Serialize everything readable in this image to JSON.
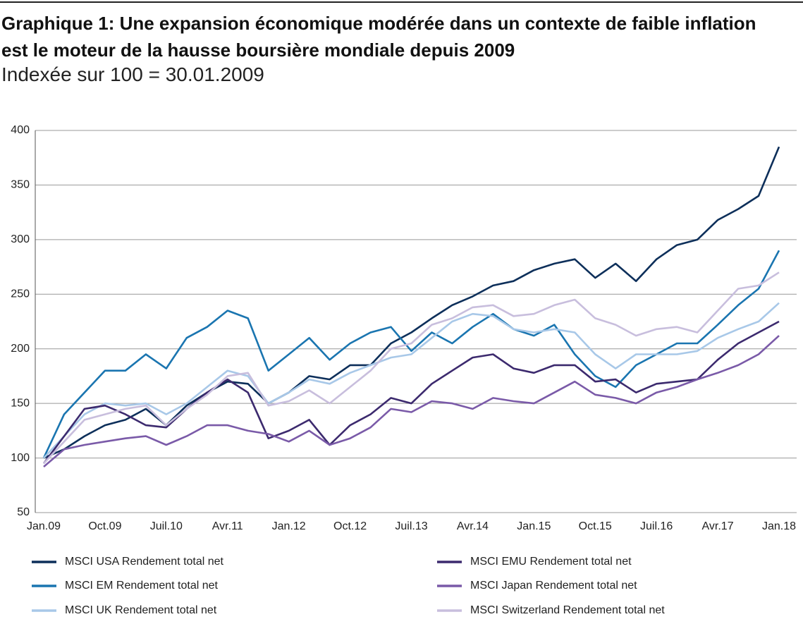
{
  "chart_data": {
    "type": "line",
    "title": "Graphique 1: Une expansion économique modérée dans un contexte de faible inflation est le moteur de la hausse boursière mondiale depuis 2009",
    "subtitle": "Indexée sur 100 = 30.01.2009",
    "categories": [
      "Jan.09",
      null,
      null,
      "Oct.09",
      null,
      null,
      "Juil.10",
      null,
      null,
      "Avr.11",
      null,
      null,
      "Jan.12",
      null,
      null,
      "Oct.12",
      null,
      null,
      "Juil.13",
      null,
      null,
      "Avr.14",
      null,
      null,
      "Jan.15",
      null,
      null,
      "Oct.15",
      null,
      null,
      "Juil.16",
      null,
      null,
      "Avr.17",
      null,
      null,
      "Jan.18"
    ],
    "ylim": [
      50,
      400
    ],
    "yticks": [
      50,
      100,
      150,
      200,
      250,
      300,
      350,
      400
    ],
    "grid": true,
    "series": [
      {
        "name": "MSCI USA Rendement total net",
        "color": "#0d2f5a",
        "values": [
          100,
          108,
          120,
          130,
          135,
          145,
          130,
          148,
          160,
          170,
          168,
          150,
          160,
          175,
          172,
          185,
          185,
          205,
          215,
          228,
          240,
          248,
          258,
          262,
          272,
          278,
          282,
          265,
          278,
          262,
          282,
          295,
          300,
          318,
          328,
          340,
          385
        ]
      },
      {
        "name": "MSCI EM Rendement total net",
        "color": "#1a75b0",
        "values": [
          100,
          140,
          160,
          180,
          180,
          195,
          182,
          210,
          220,
          235,
          228,
          180,
          195,
          210,
          190,
          205,
          215,
          220,
          198,
          215,
          205,
          220,
          232,
          218,
          212,
          222,
          195,
          175,
          165,
          185,
          195,
          205,
          205,
          222,
          240,
          255,
          290
        ]
      },
      {
        "name": "MSCI UK Rendement total net",
        "color": "#a8c8e8",
        "values": [
          100,
          120,
          140,
          150,
          148,
          150,
          140,
          150,
          165,
          180,
          175,
          150,
          160,
          172,
          168,
          178,
          185,
          192,
          195,
          210,
          225,
          232,
          230,
          218,
          215,
          218,
          215,
          195,
          182,
          195,
          195,
          195,
          198,
          210,
          218,
          225,
          242
        ]
      },
      {
        "name": "MSCI EMU Rendement total net",
        "color": "#3c2a6e",
        "values": [
          95,
          120,
          145,
          148,
          140,
          130,
          128,
          145,
          160,
          172,
          160,
          118,
          125,
          135,
          112,
          130,
          140,
          155,
          150,
          168,
          180,
          192,
          195,
          182,
          178,
          185,
          185,
          170,
          172,
          160,
          168,
          170,
          172,
          190,
          205,
          215,
          225
        ]
      },
      {
        "name": "MSCI Japan Rendement total net",
        "color": "#7a5aa8",
        "values": [
          92,
          108,
          112,
          115,
          118,
          120,
          112,
          120,
          130,
          130,
          125,
          122,
          115,
          125,
          112,
          118,
          128,
          145,
          142,
          152,
          150,
          145,
          155,
          152,
          150,
          160,
          170,
          158,
          155,
          150,
          160,
          165,
          172,
          178,
          185,
          195,
          212
        ]
      },
      {
        "name": "MSCI Switzerland Rendement total net",
        "color": "#c8bedd",
        "values": [
          95,
          115,
          135,
          140,
          145,
          148,
          130,
          145,
          158,
          175,
          178,
          148,
          152,
          162,
          150,
          165,
          180,
          200,
          205,
          222,
          228,
          238,
          240,
          230,
          232,
          240,
          245,
          228,
          222,
          212,
          218,
          220,
          215,
          235,
          255,
          258,
          270
        ]
      }
    ]
  }
}
